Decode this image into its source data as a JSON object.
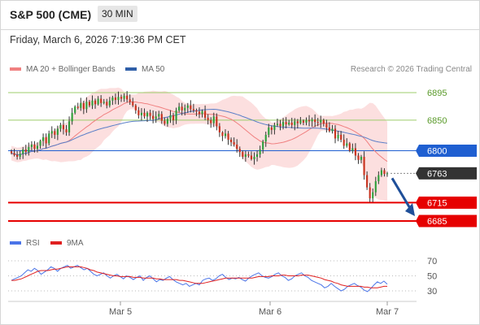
{
  "header": {
    "title": "S&P 500 (CME)",
    "timeframe": "30 MIN"
  },
  "datetime": "Friday, March 6, 2026 7:19:36 PM CET",
  "legend": {
    "bollinger": "MA 20 + Bollinger Bands",
    "ma50": "MA 50",
    "copyright": "Research © 2026 Trading Central"
  },
  "rsi_legend": {
    "rsi": "RSI",
    "ma": "9MA"
  },
  "colors": {
    "up": "#2e9e3a",
    "down": "#c8321e",
    "band": "#fbd4d4",
    "ma20": "#f08080",
    "ma50": "#5b7fc8",
    "green_level": "#9dcc6b",
    "blue_level": "#1f5fd1",
    "red_level": "#e60000",
    "rsi": "#4a74e8",
    "rsi_ma": "#e02020"
  },
  "chart_data": [
    {
      "type": "candlestick",
      "title": "S&P 500 (CME)",
      "ylim": [
        6680,
        6905
      ],
      "x_tick_labels": [
        "Mar 5",
        "Mar 6",
        "Mar 7"
      ],
      "levels": [
        {
          "value": 6895,
          "label": "6895",
          "kind": "resistance",
          "color": "#9dcc6b"
        },
        {
          "value": 6850,
          "label": "6850",
          "kind": "resistance",
          "color": "#9dcc6b"
        },
        {
          "value": 6800,
          "label": "6800",
          "kind": "pivot",
          "color": "#1f5fd1"
        },
        {
          "value": 6763,
          "label": "6763",
          "kind": "last",
          "color": "#333333"
        },
        {
          "value": 6715,
          "label": "6715",
          "kind": "support",
          "color": "#e60000"
        },
        {
          "value": 6685,
          "label": "6685",
          "kind": "support",
          "color": "#e60000"
        }
      ],
      "arrow": {
        "from": 6763,
        "to": 6685,
        "direction": "down"
      },
      "closes": [
        6796,
        6793,
        6790,
        6795,
        6802,
        6798,
        6806,
        6810,
        6803,
        6808,
        6816,
        6822,
        6812,
        6828,
        6832,
        6826,
        6836,
        6842,
        6835,
        6830,
        6848,
        6862,
        6872,
        6870,
        6878,
        6868,
        6880,
        6874,
        6882,
        6876,
        6885,
        6878,
        6880,
        6874,
        6882,
        6887,
        6883,
        6888,
        6885,
        6890,
        6884,
        6880,
        6874,
        6866,
        6858,
        6862,
        6856,
        6862,
        6857,
        6852,
        6856,
        6860,
        6849,
        6844,
        6852,
        6858,
        6850,
        6866,
        6872,
        6866,
        6870,
        6874,
        6868,
        6866,
        6864,
        6860,
        6865,
        6854,
        6850,
        6845,
        6856,
        6840,
        6830,
        6824,
        6828,
        6818,
        6814,
        6810,
        6803,
        6798,
        6790,
        6794,
        6792,
        6786,
        6790,
        6794,
        6802,
        6815,
        6826,
        6838,
        6834,
        6842,
        6844,
        6840,
        6847,
        6843,
        6846,
        6842,
        6848,
        6845,
        6849,
        6846,
        6850,
        6848,
        6851,
        6847,
        6846,
        6850,
        6844,
        6838,
        6832,
        6836,
        6820,
        6826,
        6818,
        6808,
        6812,
        6800,
        6804,
        6792,
        6785,
        6790,
        6760,
        6740,
        6722,
        6732,
        6750,
        6760,
        6768,
        6762,
        6763
      ]
    },
    {
      "type": "line",
      "title": "",
      "ylim": [
        25,
        75
      ],
      "y_tick_labels": [
        "70",
        "50",
        "30"
      ],
      "y_ticks": [
        70,
        50,
        30
      ],
      "series": [
        {
          "name": "RSI",
          "values": [
            44,
            46,
            48,
            50,
            54,
            58,
            56,
            60,
            57,
            52,
            55,
            58,
            62,
            60,
            56,
            60,
            62,
            64,
            60,
            62,
            64,
            61,
            58,
            60,
            56,
            52,
            50,
            52,
            54,
            50,
            47,
            50,
            52,
            49,
            46,
            50,
            48,
            45,
            48,
            50,
            44,
            48,
            50,
            46,
            42,
            45,
            44,
            47,
            49,
            45,
            42,
            40,
            38,
            40,
            36,
            38,
            40,
            38,
            44,
            46,
            47,
            44,
            46,
            50,
            52,
            48,
            45,
            47,
            46,
            48,
            45,
            43,
            47,
            50,
            52,
            54,
            50,
            48,
            47,
            49,
            52,
            54,
            50,
            48,
            44,
            46,
            50,
            52,
            54,
            50,
            48,
            44,
            42,
            40,
            38,
            34,
            36,
            40,
            36,
            33,
            30,
            32,
            36,
            38,
            40,
            37,
            35,
            31,
            29,
            33,
            38,
            42,
            40,
            43,
            39
          ]
        },
        {
          "name": "9MA",
          "values": [
            44,
            44,
            45,
            46,
            48,
            50,
            52,
            54,
            56,
            57,
            57,
            57,
            58,
            59,
            59,
            60,
            61,
            62,
            62,
            62,
            62,
            62,
            61,
            60,
            58,
            57,
            55,
            54,
            53,
            52,
            51,
            50,
            50,
            49,
            49,
            49,
            49,
            48,
            48,
            48,
            47,
            47,
            47,
            47,
            46,
            46,
            45,
            45,
            45,
            45,
            45,
            44,
            44,
            43,
            42,
            41,
            40,
            40,
            40,
            41,
            42,
            43,
            44,
            45,
            46,
            47,
            47,
            47,
            47,
            47,
            47,
            47,
            47,
            47,
            48,
            49,
            49,
            49,
            49,
            50,
            50,
            50,
            51,
            51,
            50,
            50,
            50,
            50,
            51,
            51,
            51,
            50,
            49,
            48,
            47,
            45,
            44,
            43,
            41,
            40,
            38,
            37,
            36,
            36,
            36,
            36,
            36,
            35,
            35,
            34,
            34,
            34,
            35,
            36,
            36
          ]
        }
      ]
    }
  ]
}
